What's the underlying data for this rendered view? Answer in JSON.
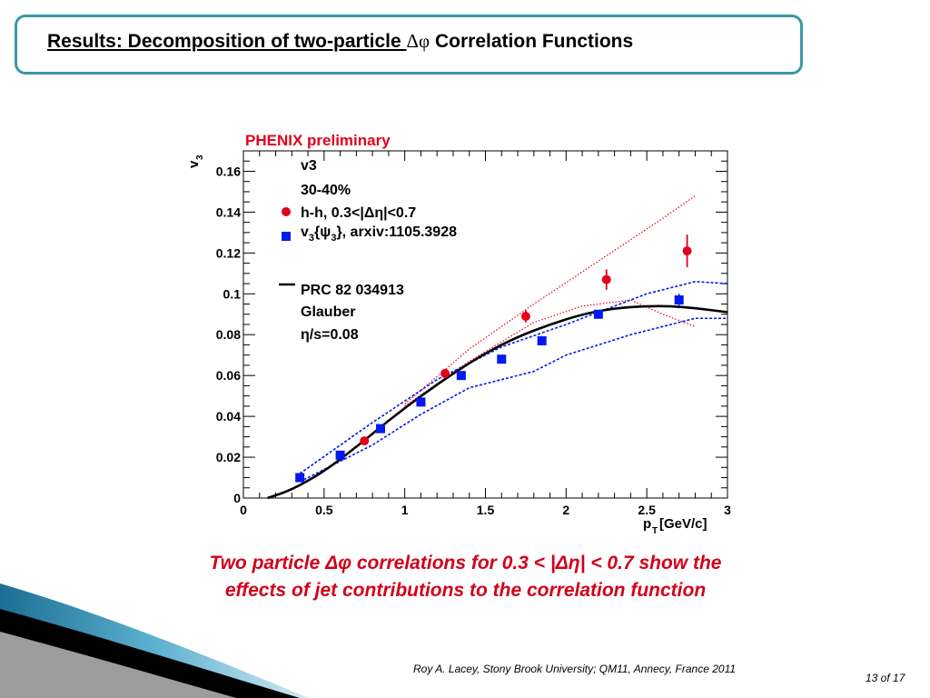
{
  "slide": {
    "title_part1": "Results:  Decomposition of two-particle ",
    "title_part2": "Δφ",
    "title_part3": " Correlation Functions",
    "caption_line1": "Two particle Δφ correlations for 0.3 < |Δη| < 0.7 show  the",
    "caption_line2": "effects of jet contributions to the correlation function",
    "footer": "Roy A. Lacey, Stony Brook University; QM11, Annecy, France 2011",
    "page": "13 of 17"
  },
  "colors": {
    "frame": "#3a98a8",
    "caption": "#d2001a",
    "hh_series": "#e3001b",
    "ep_series": "#0019f0",
    "theory": "#000000"
  },
  "chart_data": {
    "type": "scatter",
    "title": "PHENIX preliminary",
    "xlabel": "p",
    "xlabel_sub": "T",
    "xlabel_unit": " [GeV/c]",
    "ylabel": "v",
    "ylabel_sub": "3",
    "xlim": [
      0,
      3
    ],
    "ylim": [
      0,
      0.17
    ],
    "xticks": [
      {
        "v": 0,
        "label": "0"
      },
      {
        "v": 0.5,
        "label": "0.5"
      },
      {
        "v": 1,
        "label": "1"
      },
      {
        "v": 1.5,
        "label": "1.5"
      },
      {
        "v": 2,
        "label": "2"
      },
      {
        "v": 2.5,
        "label": "2.5"
      },
      {
        "v": 3,
        "label": "3"
      }
    ],
    "yticks": [
      {
        "v": 0,
        "label": "0"
      },
      {
        "v": 0.02,
        "label": "0.02"
      },
      {
        "v": 0.04,
        "label": "0.04"
      },
      {
        "v": 0.06,
        "label": "0.06"
      },
      {
        "v": 0.08,
        "label": "0.08"
      },
      {
        "v": 0.1,
        "label": "0.1"
      },
      {
        "v": 0.12,
        "label": "0.12"
      },
      {
        "v": 0.14,
        "label": "0.14"
      },
      {
        "v": 0.16,
        "label": "0.16"
      }
    ],
    "legend": {
      "line1": "v3",
      "line2": "30-40%",
      "hh": "h-h, 0.3<|Δη|<0.7",
      "ep_pre": "v",
      "ep_sub": "3",
      "ep_mid": "{ψ",
      "ep_sub2": "3",
      "ep_post": "}, arxiv:1105.3928",
      "theory1": "PRC 82 034913",
      "theory2": "Glauber",
      "theory3": "η/s=0.08"
    },
    "series": [
      {
        "name": "h-h, 0.3<|Δη|<0.7",
        "marker": "circle",
        "x": [
          0.75,
          1.25,
          1.75,
          2.25,
          2.75
        ],
        "y": [
          0.028,
          0.061,
          0.089,
          0.107,
          0.121
        ],
        "yerr": [
          0.002,
          0.002,
          0.003,
          0.005,
          0.008
        ]
      },
      {
        "name": "v3{ψ3}, arxiv:1105.3928",
        "marker": "square",
        "x": [
          0.35,
          0.6,
          0.85,
          1.1,
          1.35,
          1.6,
          1.85,
          2.2,
          2.7
        ],
        "y": [
          0.01,
          0.021,
          0.034,
          0.047,
          0.06,
          0.068,
          0.077,
          0.09,
          0.097
        ],
        "yerr": [
          0,
          0,
          0,
          0,
          0,
          0,
          0,
          0,
          0.003
        ]
      },
      {
        "name": "PRC 82 034913 Glauber η/s=0.08",
        "style": "solid",
        "x": [
          0.15,
          0.3,
          0.5,
          0.7,
          0.9,
          1.1,
          1.3,
          1.5,
          1.7,
          1.9,
          2.1,
          2.3,
          2.5,
          2.65,
          2.8,
          3.0
        ],
        "y": [
          0.0,
          0.004,
          0.013,
          0.025,
          0.038,
          0.05,
          0.061,
          0.071,
          0.079,
          0.085,
          0.09,
          0.093,
          0.094,
          0.094,
          0.093,
          0.091
        ]
      }
    ],
    "bands": [
      {
        "name": "hh_upper",
        "color": "red",
        "x": [
          1.0,
          1.4,
          1.8,
          2.2,
          2.6,
          2.8
        ],
        "y": [
          0.046,
          0.073,
          0.095,
          0.116,
          0.137,
          0.148
        ]
      },
      {
        "name": "hh_lower",
        "color": "red",
        "x": [
          1.0,
          1.4,
          1.8,
          2.1,
          2.4,
          2.6,
          2.8
        ],
        "y": [
          0.045,
          0.067,
          0.086,
          0.094,
          0.097,
          0.09,
          0.084
        ]
      },
      {
        "name": "ep_upper",
        "color": "blue",
        "x": [
          0.35,
          0.8,
          1.2,
          1.6,
          2.0,
          2.5,
          2.8,
          3.0
        ],
        "y": [
          0.012,
          0.037,
          0.058,
          0.074,
          0.085,
          0.1,
          0.106,
          0.105
        ]
      },
      {
        "name": "ep_lower",
        "color": "blue",
        "x": [
          0.35,
          0.8,
          1.1,
          1.4,
          1.8,
          2.0,
          2.4,
          2.8,
          3.0
        ],
        "y": [
          0.008,
          0.026,
          0.041,
          0.054,
          0.062,
          0.07,
          0.08,
          0.088,
          0.088
        ]
      }
    ]
  }
}
